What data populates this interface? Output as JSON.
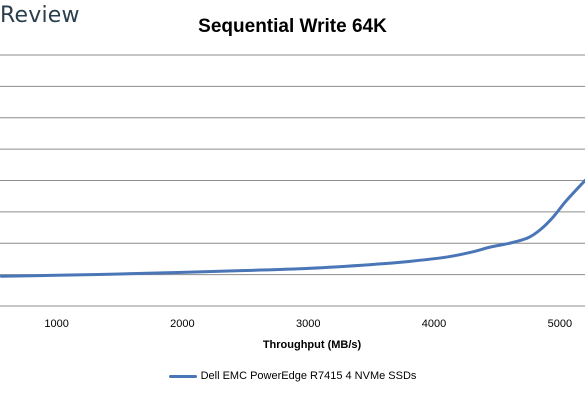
{
  "brand": "Review",
  "chart_data": {
    "type": "line",
    "title": "Sequential Write 64K",
    "xlabel": "Throughput (MB/s)",
    "ylabel": "",
    "xlim": [
      550,
      5200
    ],
    "ylim": [
      0,
      8
    ],
    "x_ticks": [
      1000,
      2000,
      3000,
      4000,
      5000
    ],
    "y_ticks": [
      1,
      2,
      3,
      4,
      5,
      6,
      7
    ],
    "grid": "horizontal",
    "legend_position": "bottom",
    "series": [
      {
        "name": "Dell EMC PowerEdge R7415 4 NVMe SSDs",
        "color": "#4a76b8",
        "x": [
          560,
          1000,
          1500,
          2000,
          2500,
          3000,
          3500,
          3800,
          4100,
          4300,
          4450,
          4600,
          4750,
          4850,
          4950,
          5050,
          5200
        ],
        "y": [
          0.95,
          0.98,
          1.02,
          1.07,
          1.13,
          1.2,
          1.32,
          1.42,
          1.56,
          1.72,
          1.88,
          2.0,
          2.18,
          2.45,
          2.85,
          3.35,
          4.0
        ]
      }
    ]
  }
}
